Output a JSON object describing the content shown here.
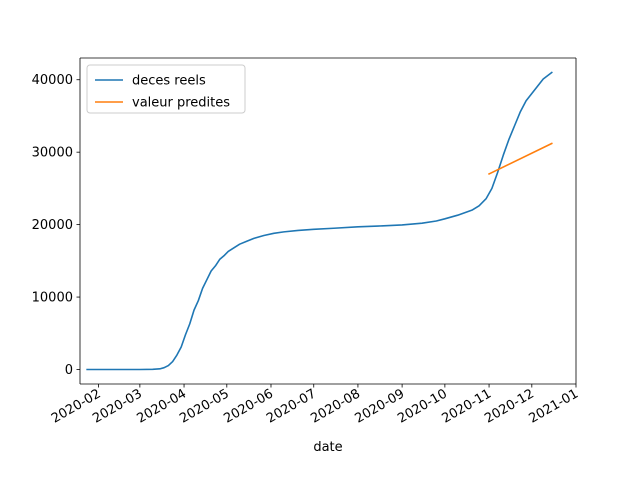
{
  "chart_data": {
    "type": "line",
    "xlabel": "date",
    "ylabel": "",
    "x_type": "date",
    "xlim": [
      "2020-01-19",
      "2021-01-01"
    ],
    "ylim": [
      -2000,
      43000
    ],
    "x_ticks": [
      "2020-02-01",
      "2020-03-01",
      "2020-04-01",
      "2020-05-01",
      "2020-06-01",
      "2020-07-01",
      "2020-08-01",
      "2020-09-01",
      "2020-10-01",
      "2020-11-01",
      "2020-12-01",
      "2021-01-01"
    ],
    "x_tick_labels": [
      "2020-02",
      "2020-03",
      "2020-04",
      "2020-05",
      "2020-06",
      "2020-07",
      "2020-08",
      "2020-09",
      "2020-10",
      "2020-11",
      "2020-12",
      "2021-01"
    ],
    "y_ticks": [
      0,
      10000,
      20000,
      30000,
      40000
    ],
    "y_tick_labels": [
      "0",
      "10000",
      "20000",
      "30000",
      "40000"
    ],
    "legend_position": "top-left",
    "grid": false,
    "series": [
      {
        "name": "deces reels",
        "color": "#1f77b4",
        "points": [
          [
            "2020-01-24",
            0
          ],
          [
            "2020-02-15",
            0
          ],
          [
            "2020-03-01",
            2
          ],
          [
            "2020-03-10",
            30
          ],
          [
            "2020-03-15",
            90
          ],
          [
            "2020-03-18",
            250
          ],
          [
            "2020-03-21",
            550
          ],
          [
            "2020-03-24",
            1100
          ],
          [
            "2020-03-27",
            2000
          ],
          [
            "2020-03-30",
            3100
          ],
          [
            "2020-04-02",
            4800
          ],
          [
            "2020-04-05",
            6300
          ],
          [
            "2020-04-08",
            8200
          ],
          [
            "2020-04-11",
            9500
          ],
          [
            "2020-04-14",
            11200
          ],
          [
            "2020-04-17",
            12400
          ],
          [
            "2020-04-20",
            13600
          ],
          [
            "2020-04-23",
            14300
          ],
          [
            "2020-04-26",
            15200
          ],
          [
            "2020-04-29",
            15700
          ],
          [
            "2020-05-02",
            16300
          ],
          [
            "2020-05-06",
            16800
          ],
          [
            "2020-05-10",
            17300
          ],
          [
            "2020-05-15",
            17700
          ],
          [
            "2020-05-20",
            18100
          ],
          [
            "2020-05-27",
            18500
          ],
          [
            "2020-06-03",
            18800
          ],
          [
            "2020-06-10",
            19000
          ],
          [
            "2020-06-20",
            19200
          ],
          [
            "2020-07-01",
            19350
          ],
          [
            "2020-07-15",
            19500
          ],
          [
            "2020-08-01",
            19700
          ],
          [
            "2020-08-15",
            19800
          ],
          [
            "2020-09-01",
            19950
          ],
          [
            "2020-09-15",
            20200
          ],
          [
            "2020-09-25",
            20500
          ],
          [
            "2020-10-01",
            20800
          ],
          [
            "2020-10-10",
            21300
          ],
          [
            "2020-10-20",
            22000
          ],
          [
            "2020-10-25",
            22600
          ],
          [
            "2020-10-30",
            23600
          ],
          [
            "2020-11-03",
            25000
          ],
          [
            "2020-11-07",
            27200
          ],
          [
            "2020-11-11",
            29600
          ],
          [
            "2020-11-15",
            31800
          ],
          [
            "2020-11-19",
            33700
          ],
          [
            "2020-11-23",
            35600
          ],
          [
            "2020-11-27",
            37100
          ],
          [
            "2020-12-01",
            38100
          ],
          [
            "2020-12-05",
            39100
          ],
          [
            "2020-12-09",
            40100
          ],
          [
            "2020-12-15",
            41000
          ]
        ]
      },
      {
        "name": "valeur predites",
        "color": "#ff7f0e",
        "points": [
          [
            "2020-11-01",
            27000
          ],
          [
            "2020-12-15",
            31200
          ]
        ]
      }
    ]
  }
}
